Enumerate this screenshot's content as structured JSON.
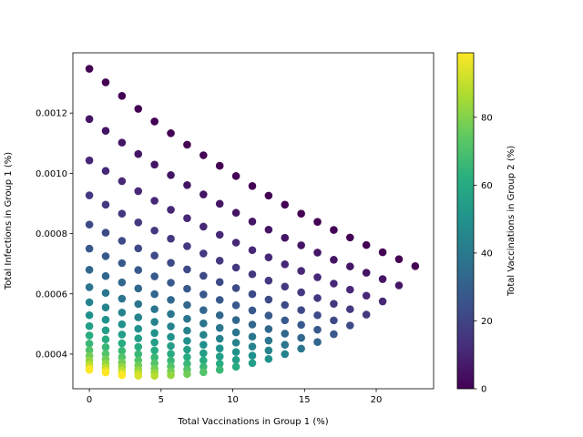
{
  "chart_data": {
    "type": "scatter",
    "title": "",
    "xlabel": "Total Vaccinations in Group 1 (%)",
    "ylabel": "Total Infections in Group 1 (%)",
    "xlim": [
      -1.15,
      24.0
    ],
    "ylim": [
      0.000285,
      0.0014
    ],
    "xticks": [
      0,
      5,
      10,
      15,
      20
    ],
    "xtick_labels": [
      "0",
      "5",
      "10",
      "15",
      "20"
    ],
    "yticks": [
      0.0004,
      0.0006,
      0.0008,
      0.001,
      0.0012
    ],
    "ytick_labels": [
      "0.0004",
      "0.0006",
      "0.0008",
      "0.0010",
      "0.0012"
    ],
    "grid": false,
    "colorbar": {
      "label": "Total Vaccinations in Group 2 (%)",
      "colormap": "viridis",
      "range": [
        0,
        99
      ],
      "ticks": [
        0,
        20,
        40,
        60,
        80
      ],
      "tick_labels": [
        "0",
        "20",
        "40",
        "60",
        "80"
      ]
    },
    "color_by": "group2_vaccinations",
    "grid_structure": {
      "x_step": 1.136,
      "group2_step": 5.5,
      "levels": 19
    },
    "rows": [
      {
        "group2": 0.0,
        "y": [
          0.001347,
          0.001302,
          0.001257,
          0.001214,
          0.001172,
          0.001133,
          0.001095,
          0.00106,
          0.001025,
          0.000991,
          0.000958,
          0.000926,
          0.000896,
          0.000866,
          0.000839,
          0.000812,
          0.000787,
          0.000762,
          0.000738,
          0.000715,
          0.000692
        ]
      },
      {
        "group2": 5.5,
        "y": [
          0.00118,
          0.001141,
          0.001102,
          0.001064,
          0.001029,
          0.000994,
          0.000961,
          0.00093,
          0.000899,
          0.000869,
          0.00084,
          0.000813,
          0.000786,
          0.000761,
          0.000737,
          0.000713,
          0.000691,
          0.00067,
          0.000649,
          0.000628
        ]
      },
      {
        "group2": 11.0,
        "y": [
          0.001043,
          0.001008,
          0.000974,
          0.000941,
          0.000909,
          0.000879,
          0.000851,
          0.000823,
          0.000796,
          0.00077,
          0.000745,
          0.000721,
          0.000698,
          0.000676,
          0.000655,
          0.000634,
          0.000614,
          0.000594,
          0.000575
        ]
      },
      {
        "group2": 16.5,
        "y": [
          0.000927,
          0.000896,
          0.000866,
          0.000837,
          0.00081,
          0.000783,
          0.000758,
          0.000734,
          0.00071,
          0.000687,
          0.000665,
          0.000644,
          0.000624,
          0.000605,
          0.000586,
          0.000567,
          0.000549,
          0.000531
        ]
      },
      {
        "group2": 22.0,
        "y": [
          0.00083,
          0.000803,
          0.000776,
          0.000751,
          0.000727,
          0.000703,
          0.000681,
          0.00066,
          0.000639,
          0.000619,
          0.000599,
          0.000581,
          0.000563,
          0.000546,
          0.000529,
          0.000512,
          0.000495
        ]
      },
      {
        "group2": 27.5,
        "y": [
          0.00075,
          0.000725,
          0.000702,
          0.000679,
          0.000658,
          0.000637,
          0.000617,
          0.000598,
          0.00058,
          0.000562,
          0.000545,
          0.000528,
          0.000512,
          0.000497,
          0.000481,
          0.000466
        ]
      },
      {
        "group2": 33.0,
        "y": [
          0.00068,
          0.000659,
          0.000638,
          0.000618,
          0.000599,
          0.00058,
          0.000563,
          0.000546,
          0.000529,
          0.000513,
          0.000498,
          0.000483,
          0.000468,
          0.000454,
          0.00044
        ]
      },
      {
        "group2": 38.5,
        "y": [
          0.000622,
          0.000603,
          0.000584,
          0.000566,
          0.000549,
          0.000533,
          0.000517,
          0.000502,
          0.000487,
          0.000472,
          0.000458,
          0.000445,
          0.000431,
          0.000418
        ]
      },
      {
        "group2": 44.0,
        "y": [
          0.000572,
          0.000555,
          0.000538,
          0.000522,
          0.000507,
          0.000492,
          0.000478,
          0.000464,
          0.000451,
          0.000438,
          0.000425,
          0.000412,
          0.0004
        ]
      },
      {
        "group2": 49.5,
        "y": [
          0.000529,
          0.000514,
          0.000499,
          0.000484,
          0.00047,
          0.000457,
          0.000444,
          0.000431,
          0.000419,
          0.000407,
          0.000395,
          0.000384
        ]
      },
      {
        "group2": 55.0,
        "y": [
          0.000493,
          0.000479,
          0.000465,
          0.000452,
          0.000439,
          0.000427,
          0.000415,
          0.000403,
          0.000392,
          0.000381,
          0.00037
        ]
      },
      {
        "group2": 60.5,
        "y": [
          0.000462,
          0.000449,
          0.000436,
          0.000424,
          0.000412,
          0.000401,
          0.00039,
          0.000379,
          0.000368,
          0.000358
        ]
      },
      {
        "group2": 66.0,
        "y": [
          0.000435,
          0.000423,
          0.000411,
          0.0004,
          0.000389,
          0.000378,
          0.000368,
          0.000358,
          0.000348
        ]
      },
      {
        "group2": 71.5,
        "y": [
          0.000413,
          0.000401,
          0.00039,
          0.000379,
          0.000369,
          0.000359,
          0.000349,
          0.00034
        ]
      },
      {
        "group2": 77.0,
        "y": [
          0.000394,
          0.000383,
          0.000372,
          0.000362,
          0.000352,
          0.000343,
          0.000334
        ]
      },
      {
        "group2": 82.5,
        "y": [
          0.000379,
          0.000368,
          0.000358,
          0.000348,
          0.000339,
          0.00033
        ]
      },
      {
        "group2": 88.0,
        "y": [
          0.000366,
          0.000356,
          0.000346,
          0.000337,
          0.000328
        ]
      },
      {
        "group2": 93.5,
        "y": [
          0.000356,
          0.000346,
          0.000337,
          0.000328
        ]
      },
      {
        "group2": 99.0,
        "y": [
          0.000348,
          0.000339,
          0.00033
        ]
      }
    ]
  }
}
